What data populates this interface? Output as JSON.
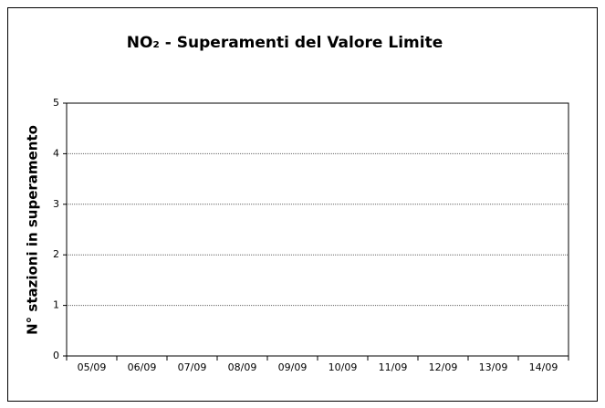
{
  "chart_data": {
    "type": "bar",
    "title": "NO₂ - Superamenti del Valore Limite",
    "y_label": "N° stazioni in superamento",
    "categories": [
      "05/09",
      "06/09",
      "07/09",
      "08/09",
      "09/09",
      "10/09",
      "11/09",
      "12/09",
      "13/09",
      "14/09"
    ],
    "values": [
      0,
      0,
      0,
      0,
      0,
      0,
      0,
      0,
      0,
      0
    ],
    "color": "#3366cc",
    "ylim": [
      0,
      5
    ],
    "yticks": [
      0,
      1,
      2,
      3,
      4,
      5
    ],
    "grid": true
  }
}
